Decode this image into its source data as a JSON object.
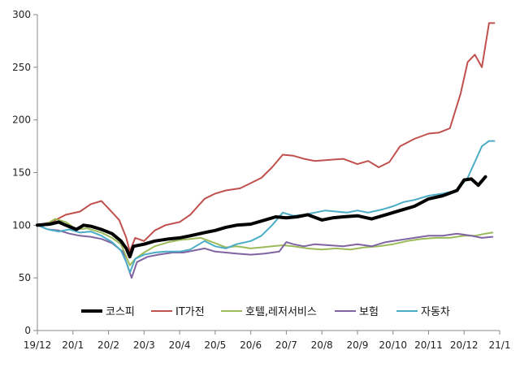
{
  "chart_data": {
    "type": "line",
    "title": "",
    "xlabel": "",
    "ylabel": "",
    "ylim": [
      0,
      300
    ],
    "yticks": [
      "0",
      "50",
      "100",
      "150",
      "200",
      "250",
      "300"
    ],
    "xticks": [
      "19/12",
      "20/1",
      "20/2",
      "20/3",
      "20/4",
      "20/5",
      "20/6",
      "20/7",
      "20/8",
      "20/9",
      "20/10",
      "20/11",
      "20/12",
      "21/1"
    ],
    "xrange_months": [
      0,
      13
    ],
    "grid": false,
    "legend_position": "bottom",
    "series": [
      {
        "name": "코스피",
        "color": "#000000",
        "width": 4,
        "points": [
          [
            0,
            100
          ],
          [
            0.35,
            101
          ],
          [
            0.6,
            103
          ],
          [
            0.8,
            100
          ],
          [
            1.1,
            96
          ],
          [
            1.3,
            100
          ],
          [
            1.5,
            99
          ],
          [
            1.8,
            96
          ],
          [
            2.1,
            92
          ],
          [
            2.35,
            85
          ],
          [
            2.5,
            78
          ],
          [
            2.6,
            70
          ],
          [
            2.7,
            80
          ],
          [
            3.0,
            82
          ],
          [
            3.3,
            85
          ],
          [
            3.7,
            87
          ],
          [
            4.0,
            88
          ],
          [
            4.3,
            90
          ],
          [
            4.7,
            93
          ],
          [
            5.0,
            95
          ],
          [
            5.3,
            98
          ],
          [
            5.6,
            100
          ],
          [
            6.0,
            101
          ],
          [
            6.4,
            105
          ],
          [
            6.7,
            108
          ],
          [
            7.0,
            107
          ],
          [
            7.3,
            108
          ],
          [
            7.6,
            110
          ],
          [
            8.0,
            105
          ],
          [
            8.3,
            107
          ],
          [
            8.6,
            108
          ],
          [
            9.0,
            109
          ],
          [
            9.4,
            106
          ],
          [
            9.8,
            110
          ],
          [
            10.2,
            114
          ],
          [
            10.6,
            118
          ],
          [
            11.0,
            125
          ],
          [
            11.4,
            128
          ],
          [
            11.8,
            133
          ],
          [
            12.0,
            143
          ],
          [
            12.2,
            144
          ],
          [
            12.4,
            138
          ],
          [
            12.6,
            146
          ]
        ]
      },
      {
        "name": "IT가전",
        "color": "#C0504D",
        "width": 2,
        "points": [
          [
            0,
            100
          ],
          [
            0.4,
            103
          ],
          [
            0.8,
            110
          ],
          [
            1.2,
            113
          ],
          [
            1.5,
            120
          ],
          [
            1.8,
            123
          ],
          [
            2.0,
            116
          ],
          [
            2.3,
            105
          ],
          [
            2.5,
            88
          ],
          [
            2.6,
            75
          ],
          [
            2.75,
            88
          ],
          [
            3.0,
            85
          ],
          [
            3.3,
            95
          ],
          [
            3.6,
            100
          ],
          [
            4.0,
            103
          ],
          [
            4.3,
            110
          ],
          [
            4.7,
            125
          ],
          [
            5.0,
            130
          ],
          [
            5.3,
            133
          ],
          [
            5.7,
            135
          ],
          [
            6.0,
            140
          ],
          [
            6.3,
            145
          ],
          [
            6.6,
            155
          ],
          [
            6.9,
            167
          ],
          [
            7.2,
            166
          ],
          [
            7.5,
            163
          ],
          [
            7.8,
            161
          ],
          [
            8.2,
            162
          ],
          [
            8.6,
            163
          ],
          [
            9.0,
            158
          ],
          [
            9.3,
            161
          ],
          [
            9.6,
            155
          ],
          [
            9.9,
            160
          ],
          [
            10.2,
            175
          ],
          [
            10.6,
            182
          ],
          [
            11.0,
            187
          ],
          [
            11.3,
            188
          ],
          [
            11.6,
            192
          ],
          [
            11.9,
            225
          ],
          [
            12.1,
            255
          ],
          [
            12.3,
            262
          ],
          [
            12.5,
            250
          ],
          [
            12.7,
            292
          ],
          [
            12.85,
            292
          ]
        ]
      },
      {
        "name": "호텔,레저서비스",
        "color": "#9BBB59",
        "width": 2,
        "points": [
          [
            0,
            100
          ],
          [
            0.3,
            102
          ],
          [
            0.5,
            106
          ],
          [
            0.8,
            103
          ],
          [
            1.1,
            96
          ],
          [
            1.4,
            97
          ],
          [
            1.8,
            93
          ],
          [
            2.1,
            88
          ],
          [
            2.35,
            82
          ],
          [
            2.5,
            70
          ],
          [
            2.6,
            62
          ],
          [
            2.75,
            68
          ],
          [
            3.0,
            74
          ],
          [
            3.3,
            80
          ],
          [
            3.7,
            84
          ],
          [
            4.0,
            86
          ],
          [
            4.3,
            87
          ],
          [
            4.6,
            88
          ],
          [
            5.0,
            83
          ],
          [
            5.3,
            79
          ],
          [
            5.6,
            80
          ],
          [
            6.0,
            78
          ],
          [
            6.3,
            79
          ],
          [
            6.6,
            80
          ],
          [
            6.9,
            81
          ],
          [
            7.2,
            80
          ],
          [
            7.6,
            78
          ],
          [
            8.0,
            77
          ],
          [
            8.4,
            78
          ],
          [
            8.8,
            77
          ],
          [
            9.2,
            79
          ],
          [
            9.6,
            80
          ],
          [
            10.0,
            82
          ],
          [
            10.4,
            85
          ],
          [
            10.8,
            87
          ],
          [
            11.2,
            88
          ],
          [
            11.6,
            88
          ],
          [
            12.0,
            90
          ],
          [
            12.3,
            90
          ],
          [
            12.6,
            92
          ],
          [
            12.8,
            93
          ]
        ]
      },
      {
        "name": "보험",
        "color": "#8064A2",
        "width": 2,
        "points": [
          [
            0,
            100
          ],
          [
            0.3,
            96
          ],
          [
            0.6,
            95
          ],
          [
            0.9,
            92
          ],
          [
            1.2,
            90
          ],
          [
            1.5,
            89
          ],
          [
            1.8,
            87
          ],
          [
            2.1,
            83
          ],
          [
            2.4,
            75
          ],
          [
            2.55,
            60
          ],
          [
            2.65,
            50
          ],
          [
            2.8,
            65
          ],
          [
            3.1,
            70
          ],
          [
            3.4,
            72
          ],
          [
            3.8,
            74
          ],
          [
            4.1,
            74
          ],
          [
            4.4,
            76
          ],
          [
            4.7,
            78
          ],
          [
            5.0,
            75
          ],
          [
            5.3,
            74
          ],
          [
            5.6,
            73
          ],
          [
            6.0,
            72
          ],
          [
            6.4,
            73
          ],
          [
            6.8,
            75
          ],
          [
            7.0,
            84
          ],
          [
            7.2,
            82
          ],
          [
            7.5,
            80
          ],
          [
            7.8,
            82
          ],
          [
            8.2,
            81
          ],
          [
            8.6,
            80
          ],
          [
            9.0,
            82
          ],
          [
            9.4,
            80
          ],
          [
            9.8,
            84
          ],
          [
            10.2,
            86
          ],
          [
            10.6,
            88
          ],
          [
            11.0,
            90
          ],
          [
            11.4,
            90
          ],
          [
            11.8,
            92
          ],
          [
            12.2,
            90
          ],
          [
            12.5,
            88
          ],
          [
            12.8,
            89
          ]
        ]
      },
      {
        "name": "자동차",
        "color": "#4BACC6",
        "width": 2,
        "points": [
          [
            0,
            100
          ],
          [
            0.3,
            96
          ],
          [
            0.6,
            94
          ],
          [
            0.9,
            96
          ],
          [
            1.2,
            93
          ],
          [
            1.5,
            94
          ],
          [
            1.8,
            90
          ],
          [
            2.1,
            84
          ],
          [
            2.35,
            76
          ],
          [
            2.5,
            65
          ],
          [
            2.6,
            55
          ],
          [
            2.75,
            68
          ],
          [
            3.0,
            72
          ],
          [
            3.3,
            74
          ],
          [
            3.6,
            75
          ],
          [
            4.0,
            75
          ],
          [
            4.3,
            77
          ],
          [
            4.7,
            85
          ],
          [
            5.0,
            80
          ],
          [
            5.3,
            78
          ],
          [
            5.6,
            82
          ],
          [
            6.0,
            85
          ],
          [
            6.3,
            90
          ],
          [
            6.6,
            100
          ],
          [
            6.9,
            112
          ],
          [
            7.2,
            109
          ],
          [
            7.5,
            110
          ],
          [
            7.8,
            112
          ],
          [
            8.1,
            114
          ],
          [
            8.4,
            113
          ],
          [
            8.7,
            112
          ],
          [
            9.0,
            114
          ],
          [
            9.3,
            112
          ],
          [
            9.7,
            115
          ],
          [
            10.0,
            118
          ],
          [
            10.3,
            122
          ],
          [
            10.6,
            124
          ],
          [
            11.0,
            128
          ],
          [
            11.4,
            130
          ],
          [
            11.8,
            133
          ],
          [
            12.1,
            145
          ],
          [
            12.3,
            160
          ],
          [
            12.5,
            175
          ],
          [
            12.7,
            180
          ],
          [
            12.85,
            180
          ]
        ]
      }
    ]
  }
}
